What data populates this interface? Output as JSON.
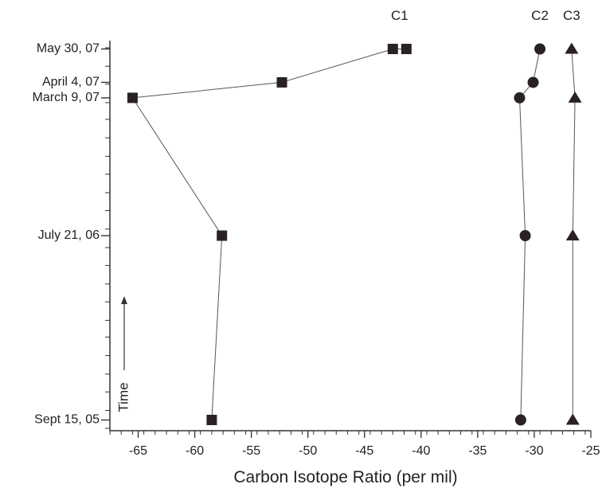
{
  "chart_data": {
    "type": "scatter",
    "title": "",
    "xlabel": "Carbon Isotope Ratio (per mil)",
    "ylabel": "",
    "time_arrow_label": "Time",
    "xlim": [
      -67.5,
      -25
    ],
    "xticks": [
      -65,
      -60,
      -55,
      -50,
      -45,
      -40,
      -35,
      -30,
      -25
    ],
    "y_axis": {
      "type": "date",
      "min": "2005-08-28",
      "max": "2007-06-13",
      "tick_labels": [
        {
          "date": "2005-09-15",
          "label": "Sept 15, 05"
        },
        {
          "date": "2006-07-21",
          "label": "July 21, 06"
        },
        {
          "date": "2007-03-09",
          "label": "March 9, 07"
        },
        {
          "date": "2007-04-04",
          "label": "April 4, 07"
        },
        {
          "date": "2007-05-30",
          "label": "May 30, 07"
        }
      ]
    },
    "grid": false,
    "series": [
      {
        "name": "C1",
        "marker": "square",
        "points": [
          {
            "x": -58.5,
            "date": "2005-09-15"
          },
          {
            "x": -57.6,
            "date": "2006-07-21"
          },
          {
            "x": -65.5,
            "date": "2007-03-09"
          },
          {
            "x": -52.3,
            "date": "2007-04-04"
          },
          {
            "x": -42.5,
            "date": "2007-05-30"
          },
          {
            "x": -41.3,
            "date": "2007-05-30"
          }
        ]
      },
      {
        "name": "C2",
        "marker": "circle",
        "points": [
          {
            "x": -31.2,
            "date": "2005-09-15"
          },
          {
            "x": -30.8,
            "date": "2006-07-21"
          },
          {
            "x": -31.3,
            "date": "2007-03-09"
          },
          {
            "x": -30.1,
            "date": "2007-04-04"
          },
          {
            "x": -29.5,
            "date": "2007-05-30"
          }
        ]
      },
      {
        "name": "C3",
        "marker": "triangle",
        "points": [
          {
            "x": -26.6,
            "date": "2005-09-15"
          },
          {
            "x": -26.6,
            "date": "2006-07-21"
          },
          {
            "x": -26.4,
            "date": "2007-03-09"
          },
          {
            "x": -26.7,
            "date": "2007-05-30"
          }
        ]
      }
    ]
  }
}
